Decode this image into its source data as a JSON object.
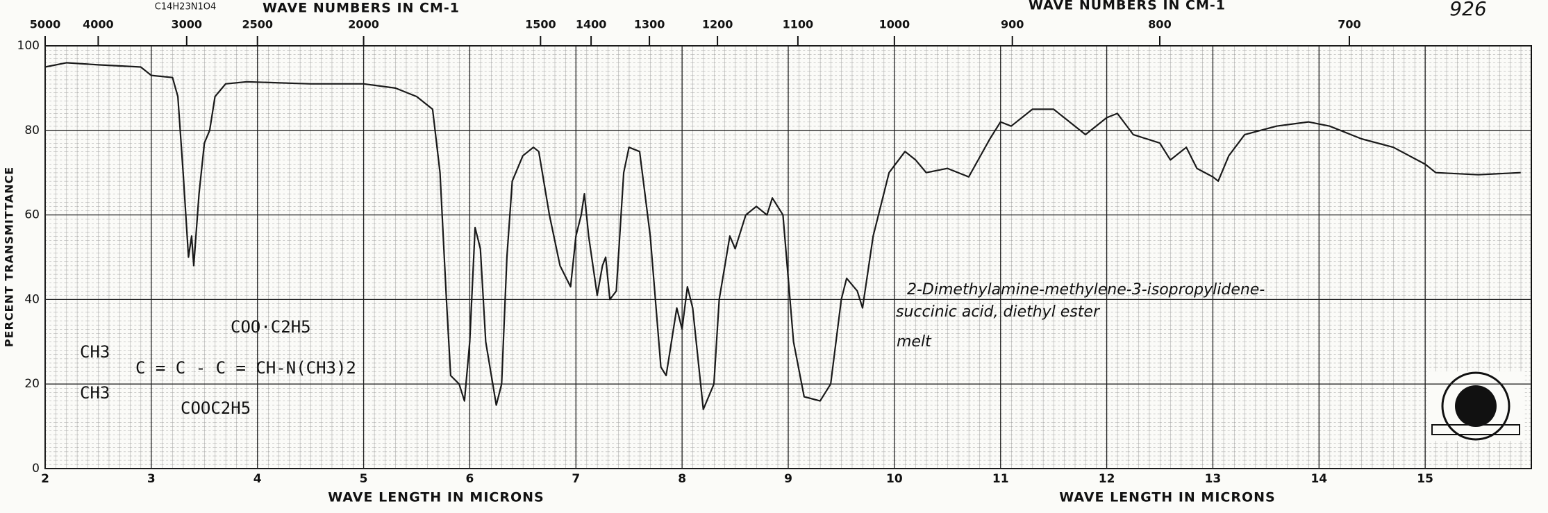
{
  "chart_data": {
    "type": "line",
    "catalog_number": "926",
    "formula": "C14H23N1O4",
    "x_label": "WAVE LENGTH IN MICRONS",
    "x2_label": "WAVE NUMBERS IN CM-1",
    "y_label": "PERCENT TRANSMITTANCE",
    "xlim": [
      2,
      16
    ],
    "xticks": [
      2,
      3,
      4,
      5,
      6,
      7,
      8,
      9,
      10,
      11,
      12,
      13,
      14,
      15
    ],
    "x2scale": "reciprocal",
    "x2ticks": [
      5000,
      4000,
      3000,
      2500,
      2000,
      1500,
      1400,
      1300,
      1200,
      1100,
      1000,
      900,
      800,
      700
    ],
    "ylim": [
      0,
      100
    ],
    "yticks": [
      0,
      20,
      40,
      60,
      80,
      100
    ],
    "grid": true,
    "color": "#1a1a1a",
    "x": [
      2.0,
      2.2,
      2.5,
      2.9,
      3.0,
      3.2,
      3.25,
      3.3,
      3.35,
      3.38,
      3.4,
      3.45,
      3.5,
      3.55,
      3.6,
      3.7,
      3.9,
      4.5,
      5.0,
      5.3,
      5.5,
      5.65,
      5.72,
      5.78,
      5.82,
      5.9,
      5.95,
      6.0,
      6.05,
      6.1,
      6.15,
      6.25,
      6.3,
      6.35,
      6.4,
      6.5,
      6.6,
      6.65,
      6.75,
      6.85,
      6.95,
      7.0,
      7.05,
      7.08,
      7.12,
      7.2,
      7.25,
      7.28,
      7.32,
      7.38,
      7.45,
      7.5,
      7.6,
      7.7,
      7.8,
      7.85,
      7.95,
      8.0,
      8.05,
      8.1,
      8.2,
      8.3,
      8.35,
      8.45,
      8.5,
      8.6,
      8.7,
      8.8,
      8.85,
      8.95,
      9.05,
      9.15,
      9.3,
      9.4,
      9.5,
      9.55,
      9.65,
      9.7,
      9.8,
      9.95,
      10.1,
      10.2,
      10.3,
      10.5,
      10.7,
      10.9,
      11.0,
      11.1,
      11.3,
      11.5,
      11.6,
      11.8,
      12.0,
      12.1,
      12.25,
      12.5,
      12.6,
      12.75,
      12.85,
      13.0,
      13.05,
      13.15,
      13.3,
      13.6,
      13.9,
      14.1,
      14.4,
      14.7,
      15.0,
      15.1,
      15.5,
      15.9
    ],
    "values": [
      95,
      96,
      95.5,
      95,
      93,
      92.5,
      88,
      70,
      50,
      55,
      48,
      65,
      77,
      80,
      88,
      91,
      91.5,
      91,
      91,
      90,
      88,
      85,
      70,
      40,
      22,
      20,
      16,
      30,
      57,
      52,
      30,
      15,
      20,
      50,
      68,
      74,
      76,
      75,
      60,
      48,
      43,
      55,
      60,
      65,
      55,
      41,
      48,
      50,
      40,
      42,
      70,
      76,
      75,
      55,
      24,
      22,
      38,
      33,
      43,
      38,
      14,
      20,
      40,
      55,
      52,
      60,
      62,
      60,
      64,
      60,
      30,
      17,
      16,
      20,
      40,
      45,
      42,
      38,
      55,
      70,
      75,
      73,
      70,
      71,
      69,
      78,
      82,
      81,
      85,
      85,
      83,
      79,
      83,
      84,
      79,
      77,
      73,
      76,
      71,
      69,
      68,
      74,
      79,
      81,
      82,
      81,
      78,
      76,
      72,
      70,
      69.5,
      70
    ],
    "annotations": [
      "2-Dimethylamine-methylene-3-isopropylidene-",
      "succinic acid, diethyl ester",
      "melt"
    ],
    "structure": [
      "COO·C2H5",
      "CH3",
      "C = C - C = CH-N(CH3)2",
      "CH3",
      "COOC2H5"
    ]
  }
}
